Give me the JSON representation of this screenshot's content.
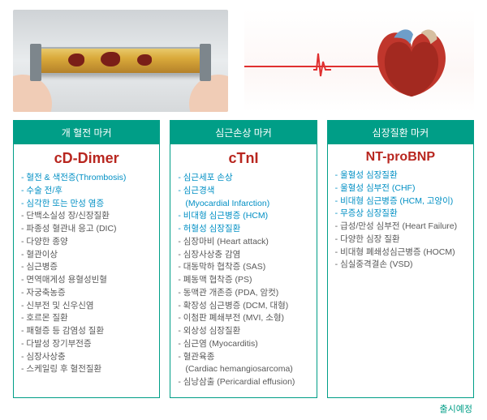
{
  "accent": "#009e87",
  "title_color": "#b8261f",
  "highlight_color": "#008fc4",
  "text_color": "#595959",
  "title_fontsizes": [
    18,
    18,
    16
  ],
  "columns": [
    {
      "header": "개 혈전 마커",
      "title": "cD-Dimer",
      "items": [
        {
          "t": "혈전 & 색전증(Thrombosis)",
          "hl": true
        },
        {
          "t": "수술 전/후",
          "hl": true
        },
        {
          "t": "심각한 또는 만성 염증",
          "hl": true
        },
        {
          "t": "단백소실성 장/신장질환"
        },
        {
          "t": "파종성 혈관내 응고 (DIC)"
        },
        {
          "t": "다양한 종양"
        },
        {
          "t": "혈관이상"
        },
        {
          "t": "심근병증"
        },
        {
          "t": "면역매게성 용혈성빈혈"
        },
        {
          "t": "자궁축농증"
        },
        {
          "t": "신부전 및 신우신염"
        },
        {
          "t": "호르몬 질환"
        },
        {
          "t": "패혈증 등 감염성 질환"
        },
        {
          "t": "다발성 장기부전증"
        },
        {
          "t": "심장사상충"
        },
        {
          "t": "스케일링 후 혈전질환"
        }
      ]
    },
    {
      "header": "심근손상 마커",
      "title": "cTnI",
      "items": [
        {
          "t": "심근세포 손상",
          "hl": true
        },
        {
          "t": "심근경색",
          "hl": true
        },
        {
          "t": "(Myocardial Infarction)",
          "hl": true,
          "sub": true
        },
        {
          "t": "비대형 심근병증 (HCM)",
          "hl": true
        },
        {
          "t": "허혈성 심장질환",
          "hl": true
        },
        {
          "t": "심장마비 (Heart attack)"
        },
        {
          "t": "심장사상충 감염"
        },
        {
          "t": "대동막하 협착증 (SAS)"
        },
        {
          "t": "폐동맥 협착증 (PS)"
        },
        {
          "t": "동맥관 개존증 (PDA, 암컷)"
        },
        {
          "t": "확장성 심근병증 (DCM, 대형)"
        },
        {
          "t": "이첨판 폐쇄부전 (MVI, 소형)"
        },
        {
          "t": "외상성 심장질환"
        },
        {
          "t": "심근염 (Myocarditis)"
        },
        {
          "t": "혈관육종"
        },
        {
          "t": "(Cardiac hemangiosarcoma)",
          "sub": true
        },
        {
          "t": "심낭삼출 (Pericardial effusion)"
        }
      ]
    },
    {
      "header": "심장질환 마커",
      "title": "NT-proBNP",
      "items": [
        {
          "t": "울혈성 심장질환",
          "hl": true
        },
        {
          "t": "울혈성 심부전 (CHF)",
          "hl": true
        },
        {
          "t": "비대형 심근병증 (HCM, 고양이)",
          "hl": true
        },
        {
          "t": "무증상 심장질환",
          "hl": true
        },
        {
          "t": "급성/만성 심부전 (Heart Failure)"
        },
        {
          "t": "다양한 심장 질환"
        },
        {
          "t": "비대형 폐쇄성심근병증 (HOCM)"
        },
        {
          "t": "심실중격결손 (VSD)"
        }
      ]
    }
  ],
  "footer": "출시예정"
}
